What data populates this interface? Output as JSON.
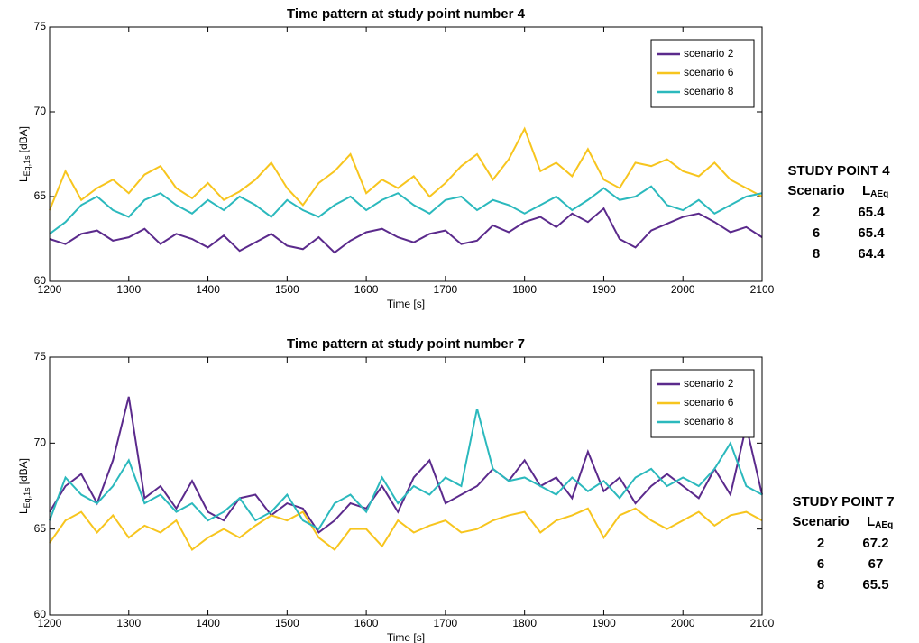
{
  "chart_data": [
    {
      "type": "line",
      "title": "Time pattern at study point number 4",
      "xlabel": "Time [s]",
      "ylabel": {
        "text": "L",
        "subscript": "Eq,1s",
        "suffix": "[dBA]"
      },
      "x": [
        1200,
        1220,
        1240,
        1260,
        1280,
        1300,
        1320,
        1340,
        1360,
        1380,
        1400,
        1420,
        1440,
        1460,
        1480,
        1500,
        1520,
        1540,
        1560,
        1580,
        1600,
        1620,
        1640,
        1660,
        1680,
        1700,
        1720,
        1740,
        1760,
        1780,
        1800,
        1820,
        1840,
        1860,
        1880,
        1900,
        1920,
        1940,
        1960,
        1980,
        2000,
        2020,
        2040,
        2060,
        2080,
        2100
      ],
      "xlim": [
        1200,
        2100
      ],
      "xticks": [
        1200,
        1300,
        1400,
        1500,
        1600,
        1700,
        1800,
        1900,
        2000,
        2100
      ],
      "ylim": [
        60,
        75
      ],
      "yticks": [
        60,
        65,
        70,
        75
      ],
      "legend": "upper right",
      "series": [
        {
          "name": "scenario 2",
          "color": "#5b2a8c",
          "values": [
            62.5,
            62.2,
            62.8,
            63.0,
            62.4,
            62.6,
            63.1,
            62.2,
            62.8,
            62.5,
            62.0,
            62.7,
            61.8,
            62.3,
            62.8,
            62.1,
            61.9,
            62.6,
            61.7,
            62.4,
            62.9,
            63.1,
            62.6,
            62.3,
            62.8,
            63.0,
            62.2,
            62.4,
            63.3,
            62.9,
            63.5,
            63.8,
            63.2,
            64.0,
            63.5,
            64.3,
            62.5,
            62.0,
            63.0,
            63.4,
            63.8,
            64.0,
            63.5,
            62.9,
            63.2,
            62.6
          ]
        },
        {
          "name": "scenario 6",
          "color": "#f7c51e",
          "values": [
            64.2,
            66.5,
            64.8,
            65.5,
            66.0,
            65.2,
            66.3,
            66.8,
            65.5,
            64.9,
            65.8,
            64.8,
            65.3,
            66.0,
            67.0,
            65.5,
            64.5,
            65.8,
            66.5,
            67.5,
            65.2,
            66.0,
            65.5,
            66.2,
            65.0,
            65.8,
            66.8,
            67.5,
            66.0,
            67.2,
            69.0,
            66.5,
            67.0,
            66.2,
            67.8,
            66.0,
            65.5,
            67.0,
            66.8,
            67.2,
            66.5,
            66.2,
            67.0,
            66.0,
            65.5,
            65.0
          ]
        },
        {
          "name": "scenario 8",
          "color": "#2bb9bd",
          "values": [
            62.8,
            63.5,
            64.5,
            65.0,
            64.2,
            63.8,
            64.8,
            65.2,
            64.5,
            64.0,
            64.8,
            64.2,
            65.0,
            64.5,
            63.8,
            64.8,
            64.2,
            63.8,
            64.5,
            65.0,
            64.2,
            64.8,
            65.2,
            64.5,
            64.0,
            64.8,
            65.0,
            64.2,
            64.8,
            64.5,
            64.0,
            64.5,
            65.0,
            64.2,
            64.8,
            65.5,
            64.8,
            65.0,
            65.6,
            64.5,
            64.2,
            64.8,
            64.0,
            64.5,
            65.0,
            65.2
          ]
        }
      ]
    },
    {
      "type": "line",
      "title": "Time pattern at study point number 7",
      "xlabel": "Time [s]",
      "ylabel": {
        "text": "L",
        "subscript": "Eq,1s",
        "suffix": "[dBA]"
      },
      "x": [
        1200,
        1220,
        1240,
        1260,
        1280,
        1300,
        1320,
        1340,
        1360,
        1380,
        1400,
        1420,
        1440,
        1460,
        1480,
        1500,
        1520,
        1540,
        1560,
        1580,
        1600,
        1620,
        1640,
        1660,
        1680,
        1700,
        1720,
        1740,
        1760,
        1780,
        1800,
        1820,
        1840,
        1860,
        1880,
        1900,
        1920,
        1940,
        1960,
        1980,
        2000,
        2020,
        2040,
        2060,
        2080,
        2100
      ],
      "xlim": [
        1200,
        2100
      ],
      "xticks": [
        1200,
        1300,
        1400,
        1500,
        1600,
        1700,
        1800,
        1900,
        2000,
        2100
      ],
      "ylim": [
        60,
        75
      ],
      "yticks": [
        60,
        65,
        70,
        75
      ],
      "legend": "upper right",
      "series": [
        {
          "name": "scenario 2",
          "color": "#5b2a8c",
          "values": [
            66.0,
            67.5,
            68.2,
            66.5,
            69.0,
            72.7,
            66.8,
            67.5,
            66.2,
            67.8,
            66.0,
            65.5,
            66.8,
            67.0,
            65.8,
            66.5,
            66.2,
            64.8,
            65.5,
            66.5,
            66.2,
            67.5,
            66.0,
            68.0,
            69.0,
            66.5,
            67.0,
            67.5,
            68.5,
            67.8,
            69.0,
            67.5,
            68.0,
            66.8,
            69.5,
            67.2,
            68.0,
            66.5,
            67.5,
            68.2,
            67.5,
            66.8,
            68.5,
            67.0,
            71.0,
            67.0
          ]
        },
        {
          "name": "scenario 6",
          "color": "#f7c51e",
          "values": [
            64.2,
            65.5,
            66.0,
            64.8,
            65.8,
            64.5,
            65.2,
            64.8,
            65.5,
            63.8,
            64.5,
            65.0,
            64.5,
            65.2,
            65.8,
            65.5,
            66.0,
            64.5,
            63.8,
            65.0,
            65.0,
            64.0,
            65.5,
            64.8,
            65.2,
            65.5,
            64.8,
            65.0,
            65.5,
            65.8,
            66.0,
            64.8,
            65.5,
            65.8,
            66.2,
            64.5,
            65.8,
            66.2,
            65.5,
            65.0,
            65.5,
            66.0,
            65.2,
            65.8,
            66.0,
            65.5
          ]
        },
        {
          "name": "scenario 8",
          "color": "#2bb9bd",
          "values": [
            65.5,
            68.0,
            67.0,
            66.5,
            67.5,
            69.0,
            66.5,
            67.0,
            66.0,
            66.5,
            65.5,
            66.0,
            66.8,
            65.5,
            66.0,
            67.0,
            65.5,
            65.0,
            66.5,
            67.0,
            66.0,
            68.0,
            66.5,
            67.5,
            67.0,
            68.0,
            67.5,
            72.0,
            68.5,
            67.8,
            68.0,
            67.5,
            67.0,
            68.0,
            67.2,
            67.8,
            66.8,
            68.0,
            68.5,
            67.5,
            68.0,
            67.5,
            68.5,
            70.0,
            67.5,
            67.0
          ]
        }
      ]
    }
  ],
  "tables": [
    {
      "title": "STUDY POINT 4",
      "columns": [
        "Scenario",
        {
          "text": "L",
          "subscript": "AEq"
        }
      ],
      "rows": [
        [
          2,
          65.4
        ],
        [
          6,
          65.4
        ],
        [
          8,
          64.4
        ]
      ]
    },
    {
      "title": "STUDY POINT 7",
      "columns": [
        "Scenario",
        {
          "text": "L",
          "subscript": "AEq"
        }
      ],
      "rows": [
        [
          2,
          67.2
        ],
        [
          6,
          67
        ],
        [
          8,
          65.5
        ]
      ]
    }
  ]
}
